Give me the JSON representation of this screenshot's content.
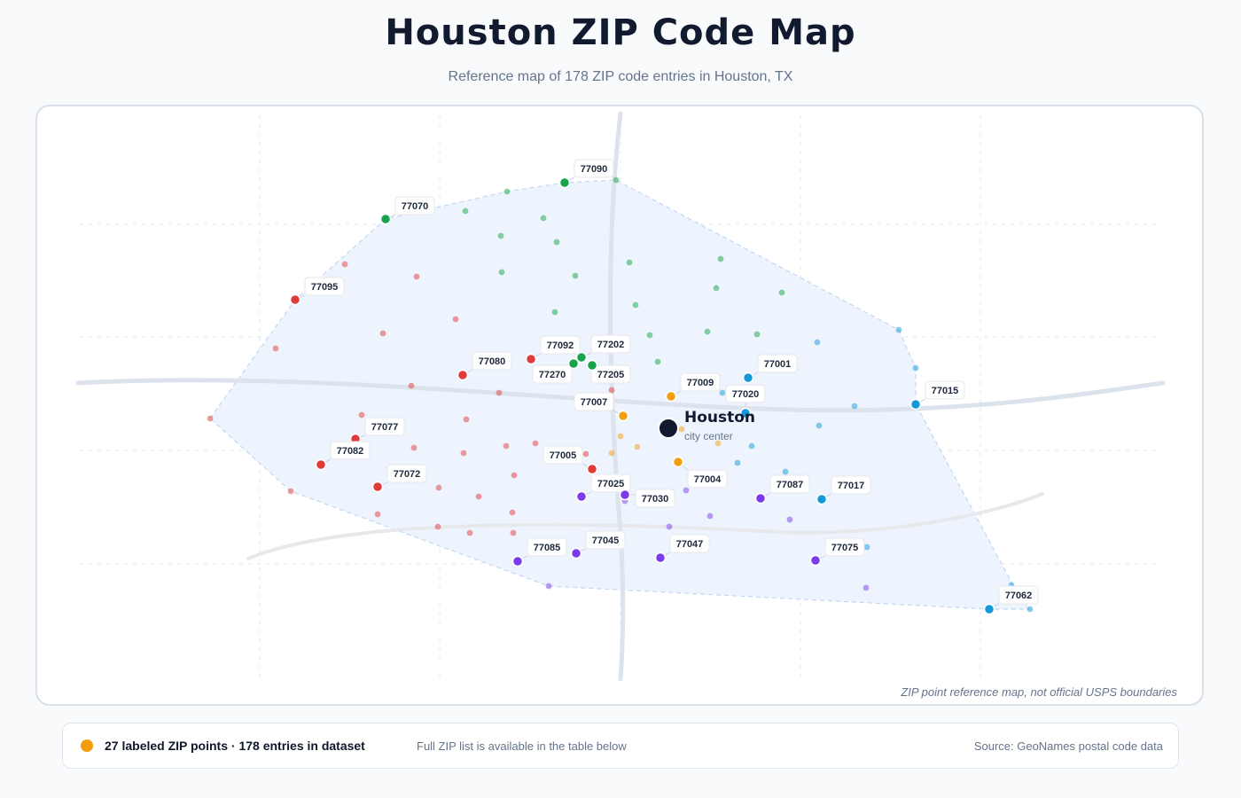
{
  "title": "Houston ZIP Code Map",
  "subtitle": "Reference map of 178 ZIP code entries in Houston, TX",
  "city": {
    "name": "Houston",
    "caption": "city center"
  },
  "disclaimer": "ZIP point reference map, not official USPS boundaries",
  "legend": {
    "main": "27 labeled ZIP points · 178 entries in dataset",
    "note": "Full ZIP list is available in the table below",
    "source": "Source: GeoNames postal code data",
    "dot_color": "#f29e0c"
  },
  "colors": {
    "north": "#16a34a",
    "west": "#e03b3b",
    "central": "#f29e0c",
    "east": "#1499d8",
    "south": "#7c3aed"
  },
  "labeled_zips": [
    {
      "zip": "77090",
      "group": "north"
    },
    {
      "zip": "77070",
      "group": "north"
    },
    {
      "zip": "77095",
      "group": "west"
    },
    {
      "zip": "77092",
      "group": "west"
    },
    {
      "zip": "77202",
      "group": "north"
    },
    {
      "zip": "77080",
      "group": "west"
    },
    {
      "zip": "77270",
      "group": "north"
    },
    {
      "zip": "77205",
      "group": "north"
    },
    {
      "zip": "77009",
      "group": "central"
    },
    {
      "zip": "77001",
      "group": "east"
    },
    {
      "zip": "77020",
      "group": "east"
    },
    {
      "zip": "77015",
      "group": "east"
    },
    {
      "zip": "77007",
      "group": "central"
    },
    {
      "zip": "77077",
      "group": "west"
    },
    {
      "zip": "77082",
      "group": "west"
    },
    {
      "zip": "77005",
      "group": "west"
    },
    {
      "zip": "77004",
      "group": "central"
    },
    {
      "zip": "77072",
      "group": "west"
    },
    {
      "zip": "77025",
      "group": "south"
    },
    {
      "zip": "77030",
      "group": "south"
    },
    {
      "zip": "77087",
      "group": "south"
    },
    {
      "zip": "77017",
      "group": "east"
    },
    {
      "zip": "77085",
      "group": "south"
    },
    {
      "zip": "77045",
      "group": "south"
    },
    {
      "zip": "77047",
      "group": "south"
    },
    {
      "zip": "77075",
      "group": "south"
    },
    {
      "zip": "77062",
      "group": "east"
    }
  ]
}
